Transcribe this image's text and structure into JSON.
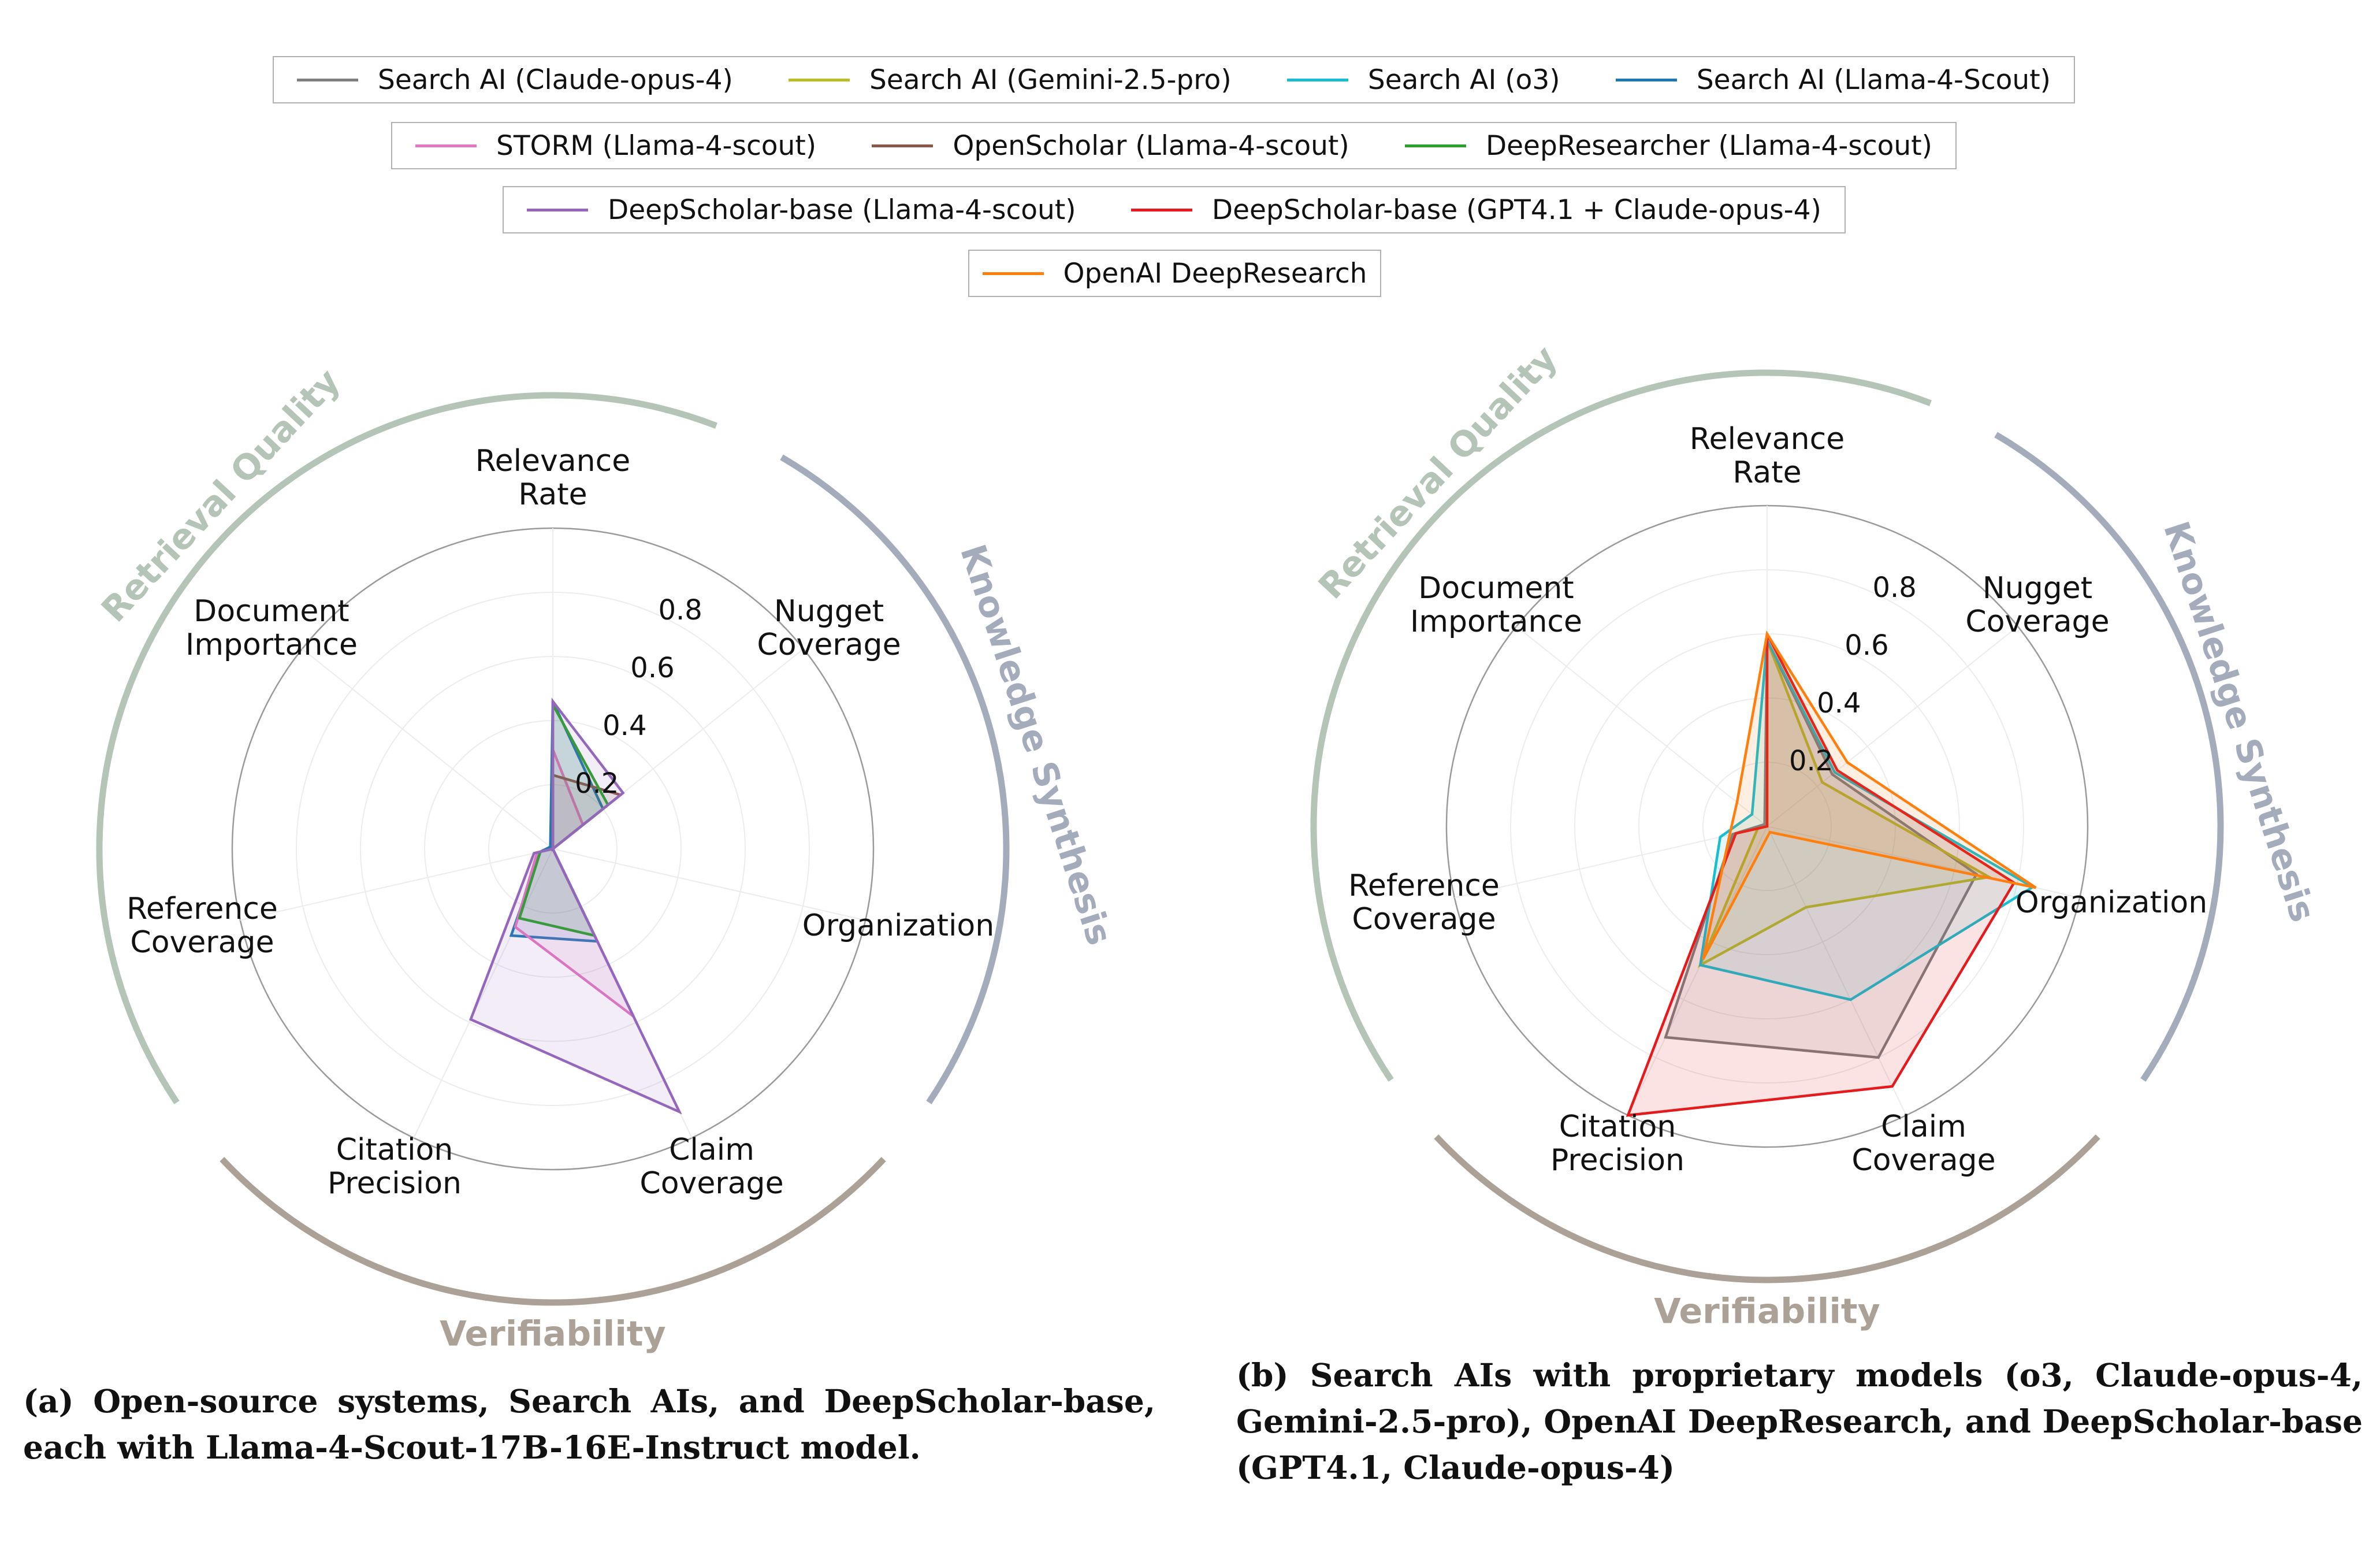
{
  "legend": {
    "rows": [
      [
        {
          "label": "Search AI (Claude-opus-4)",
          "color": "#7f7f7f"
        },
        {
          "label": "Search AI (Gemini-2.5-pro)",
          "color": "#bcbd22"
        },
        {
          "label": "Search AI (o3)",
          "color": "#17becf"
        },
        {
          "label": "Search AI (Llama-4-Scout)",
          "color": "#1f77b4"
        }
      ],
      [
        {
          "label": "STORM (Llama-4-scout)",
          "color": "#e377c2"
        },
        {
          "label": "OpenScholar (Llama-4-scout)",
          "color": "#8c564b"
        },
        {
          "label": "DeepResearcher (Llama-4-scout)",
          "color": "#2ca02c"
        }
      ],
      [
        {
          "label": "DeepScholar-base (Llama-4-scout)",
          "color": "#9467bd"
        },
        {
          "label": "DeepScholar-base (GPT4.1 + Claude-opus-4)",
          "color": "#e41a1c"
        }
      ],
      [
        {
          "label": "OpenAI DeepResearch",
          "color": "#ff7f0e"
        }
      ]
    ]
  },
  "chart_data": [
    {
      "type": "radar",
      "axes": [
        "Relevance Rate",
        "Nugget Coverage",
        "Organization",
        "Claim Coverage",
        "Citation Precision",
        "Reference Coverage",
        "Document Importance"
      ],
      "axis_label_lines": [
        [
          "Relevance",
          "Rate"
        ],
        [
          "Nugget",
          "Coverage"
        ],
        [
          "Organization"
        ],
        [
          "Claim",
          "Coverage"
        ],
        [
          "Citation",
          "Precision"
        ],
        [
          "Reference",
          "Coverage"
        ],
        [
          "Document",
          "Importance"
        ]
      ],
      "ticks": [
        0.2,
        0.4,
        0.6,
        0.8
      ],
      "rlim": [
        0,
        1
      ],
      "groups": [
        {
          "name": "Retrieval Quality",
          "color": "#b4c4b6"
        },
        {
          "name": "Knowledge Synthesis",
          "color": "#a4acbc"
        },
        {
          "name": "Verifiability",
          "color": "#aca197"
        }
      ],
      "series": [
        {
          "name": "Search AI (Llama-4-Scout)",
          "color": "#1f77b4",
          "values": [
            0.46,
            0.2,
            0.0,
            0.32,
            0.3,
            0.04,
            0.01
          ]
        },
        {
          "name": "STORM (Llama-4-scout)",
          "color": "#e377c2",
          "values": [
            0.31,
            0.12,
            0.0,
            0.58,
            0.27,
            0.05,
            0.0
          ]
        },
        {
          "name": "OpenScholar (Llama-4-scout)",
          "color": "#8c564b",
          "values": [
            0.23,
            0.27,
            0.0,
            0.0,
            0.0,
            0.0,
            0.0
          ]
        },
        {
          "name": "DeepResearcher (Llama-4-scout)",
          "color": "#2ca02c",
          "values": [
            0.45,
            0.22,
            0.0,
            0.3,
            0.24,
            0.04,
            0.0
          ]
        },
        {
          "name": "DeepScholar-base (Llama-4-scout)",
          "color": "#9467bd",
          "values": [
            0.46,
            0.28,
            0.0,
            0.91,
            0.59,
            0.06,
            0.0
          ]
        }
      ]
    },
    {
      "type": "radar",
      "axes": [
        "Relevance Rate",
        "Nugget Coverage",
        "Organization",
        "Claim Coverage",
        "Citation Precision",
        "Reference Coverage",
        "Document Importance"
      ],
      "axis_label_lines": [
        [
          "Relevance",
          "Rate"
        ],
        [
          "Nugget",
          "Coverage"
        ],
        [
          "Organization"
        ],
        [
          "Claim",
          "Coverage"
        ],
        [
          "Citation",
          "Precision"
        ],
        [
          "Reference",
          "Coverage"
        ],
        [
          "Document",
          "Importance"
        ]
      ],
      "ticks": [
        0.2,
        0.4,
        0.6,
        0.8
      ],
      "rlim": [
        0,
        1
      ],
      "groups": [
        {
          "name": "Retrieval Quality",
          "color": "#b4c4b6"
        },
        {
          "name": "Knowledge Synthesis",
          "color": "#a4acbc"
        },
        {
          "name": "Verifiability",
          "color": "#aca197"
        }
      ],
      "series": [
        {
          "name": "Search AI (Claude-opus-4)",
          "color": "#7f7f7f",
          "values": [
            0.58,
            0.26,
            0.67,
            0.8,
            0.73,
            0.11,
            0.01
          ]
        },
        {
          "name": "Search AI (Gemini-2.5-pro)",
          "color": "#bcbd22",
          "values": [
            0.58,
            0.22,
            0.71,
            0.28,
            0.48,
            0.03,
            0.0
          ]
        },
        {
          "name": "Search AI (o3)",
          "color": "#17becf",
          "values": [
            0.58,
            0.27,
            0.85,
            0.6,
            0.48,
            0.15,
            0.06
          ]
        },
        {
          "name": "DeepScholar-base (GPT4.1 + Claude-opus-4)",
          "color": "#e41a1c",
          "values": [
            0.6,
            0.28,
            0.79,
            0.9,
            1.0,
            0.1,
            0.0
          ]
        },
        {
          "name": "OpenAI DeepResearch",
          "color": "#ff7f0e",
          "values": [
            0.6,
            0.32,
            0.86,
            0.02,
            0.46,
            0.12,
            0.12
          ]
        }
      ]
    }
  ],
  "captions": [
    "(a) Open-source systems, Search AIs, and DeepScholar-base, each with Llama-4-Scout-17B-16E-Instruct model.",
    "(b) Search AIs with proprietary models (o3, Claude-opus-4, Gemini-2.5-pro), OpenAI DeepResearch, and DeepScholar-base (GPT4.1, Claude-opus-4)"
  ]
}
